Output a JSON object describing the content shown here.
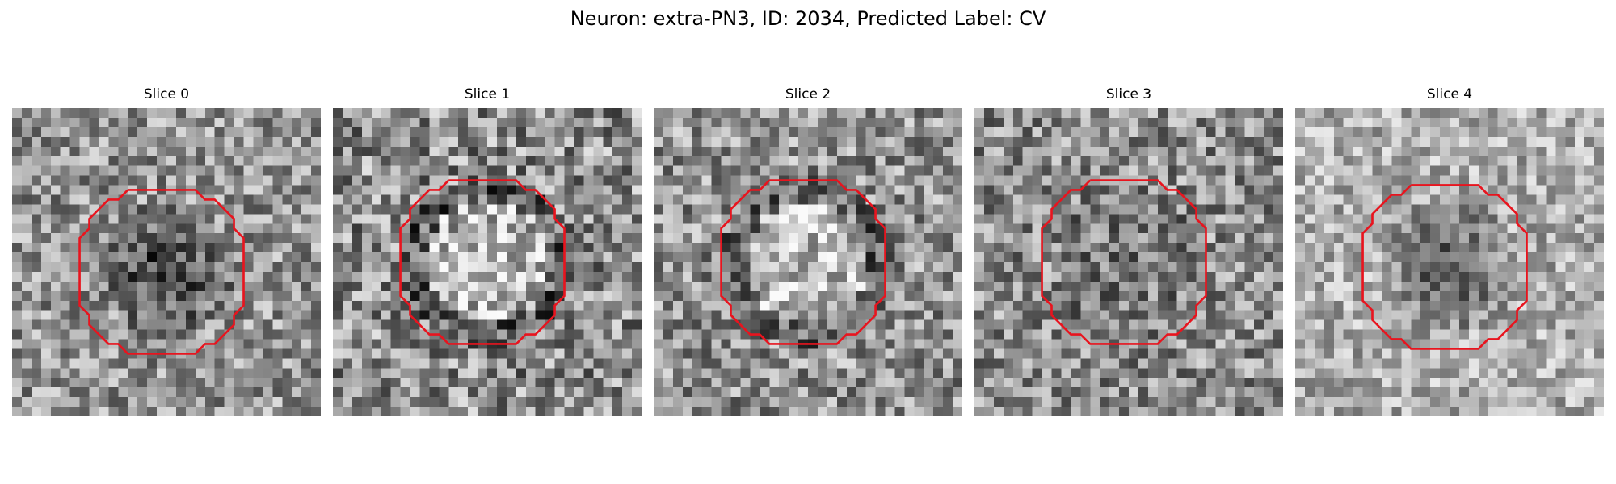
{
  "figure": {
    "title": "Neuron: extra-PN3, ID: 2034, Predicted Label: CV"
  },
  "panels": [
    {
      "title": "Slice 0",
      "center_tone": "dark",
      "brightness": 0.58,
      "contrast": 0.28
    },
    {
      "title": "Slice 1",
      "center_tone": "light",
      "brightness": 0.55,
      "contrast": 0.34
    },
    {
      "title": "Slice 2",
      "center_tone": "light",
      "brightness": 0.57,
      "contrast": 0.3
    },
    {
      "title": "Slice 3",
      "center_tone": "mixed",
      "brightness": 0.55,
      "contrast": 0.3
    },
    {
      "title": "Slice 4",
      "center_tone": "dark",
      "brightness": 0.68,
      "contrast": 0.24
    }
  ],
  "contour": {
    "color": "#e8141e",
    "shape": "octagon"
  },
  "colormap": "gray"
}
